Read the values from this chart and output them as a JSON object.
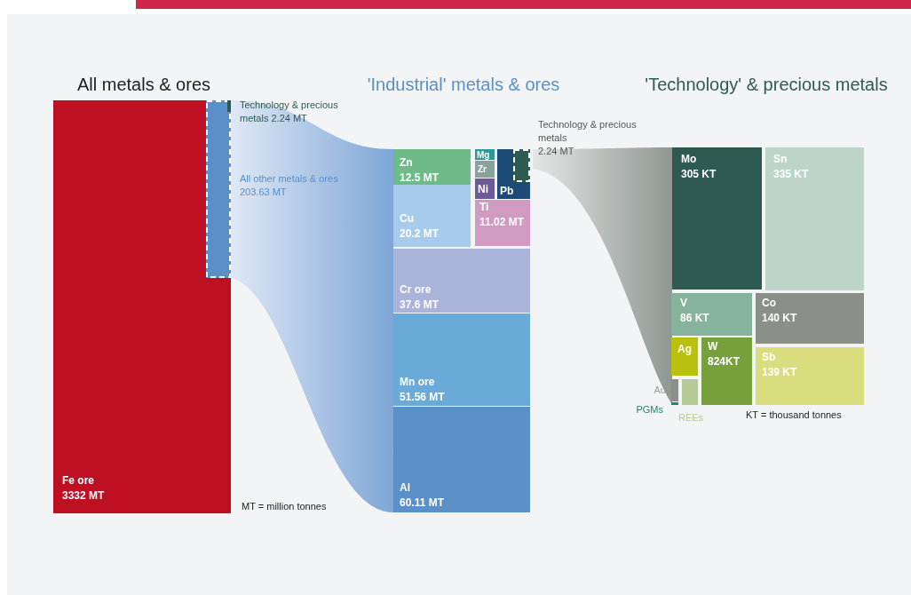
{
  "chart_data": [
    {
      "type": "other",
      "title": "All metals & ores",
      "categories": [
        "Fe ore",
        "All other metals & ores",
        "Technology & precious metals"
      ],
      "values": [
        3332,
        203.63,
        2.24
      ],
      "value_labels": [
        "3332 MT",
        "203.63 MT",
        "2.24 MT"
      ],
      "colors": [
        "#be0f23",
        "#5b8fc7",
        "#2f5a52"
      ],
      "annotations": [
        "MT = million tonnes"
      ]
    },
    {
      "type": "other",
      "title": "'Industrial' metals & ores",
      "categories": [
        "Zn",
        "Cu",
        "Cr ore",
        "Mn ore",
        "Al",
        "Mg",
        "Zr",
        "Ni",
        "Pb",
        "Ti",
        "Technology & precious metals"
      ],
      "values": [
        12.5,
        20.2,
        37.6,
        51.56,
        60.11,
        null,
        null,
        null,
        null,
        11.02,
        2.24
      ],
      "value_labels": [
        "12.5 MT",
        "20.2 MT",
        "37.6 MT",
        "51.56 MT",
        "60.11 MT",
        null,
        null,
        null,
        null,
        "11.02 MT",
        "2.24 MT"
      ],
      "colors": [
        "#6dbb87",
        "#a9cbeb",
        "#aab3d9",
        "#6aaad8",
        "#5b8fc7",
        "#2a9a95",
        "#8aa39a",
        "#6e5a96",
        "#1c4b78",
        "#d19ac3",
        "#2f5a52"
      ]
    },
    {
      "type": "other",
      "title": "'Technology' & precious metals",
      "categories": [
        "Mo",
        "Sn",
        "V",
        "Co",
        "Ag",
        "W",
        "Sb",
        "Au",
        "REEs",
        "PGMs"
      ],
      "values": [
        305,
        335,
        86,
        140,
        null,
        824,
        139,
        null,
        null,
        null
      ],
      "value_labels": [
        "305 KT",
        "335 KT",
        "86 KT",
        "140 KT",
        null,
        "824KT",
        "139 KT",
        null,
        null,
        null
      ],
      "colors": [
        "#2f5a52",
        "#bcd5c8",
        "#86b39d",
        "#8a8f8a",
        "#b9c10e",
        "#77a03c",
        "#d9dd7e",
        "#8a8f8a",
        "#b5c995",
        "#1a8a6a"
      ],
      "annotations": [
        "KT = thousand tonnes"
      ]
    }
  ]
}
